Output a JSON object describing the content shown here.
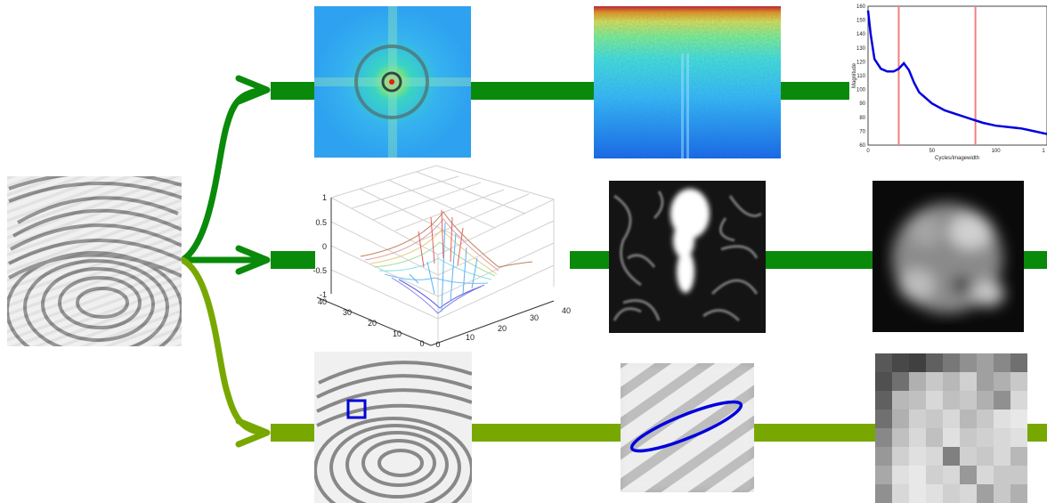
{
  "colors": {
    "green": "#0a8a0a",
    "olive": "#78a800",
    "blue_curve": "#0000e0",
    "red_marker": "#f08080",
    "ellipse": "#0000dd"
  },
  "spectrum_chart": {
    "ylabel": "Magnitude",
    "xlabel": "Cycles/imagewidth",
    "y_ticks": [
      "160",
      "150",
      "140",
      "130",
      "120",
      "110",
      "100",
      "90",
      "80",
      "70",
      "60"
    ],
    "x_ticks": [
      "0",
      "50",
      "100",
      "1"
    ]
  },
  "surface_plot": {
    "z_ticks": [
      "1",
      "0.5",
      "0",
      "-0.5",
      "-1"
    ],
    "x_ticks": [
      "0",
      "10",
      "20",
      "30",
      "40"
    ],
    "y_ticks": [
      "40",
      "30",
      "20",
      "10",
      "0"
    ]
  },
  "chart_data": [
    {
      "type": "line",
      "ylabel": "Magnitude",
      "xlabel": "Cycles/imagewidth",
      "xlim": [
        0,
        140
      ],
      "ylim": [
        60,
        160
      ],
      "x": [
        0,
        2,
        5,
        10,
        15,
        20,
        24,
        28,
        32,
        36,
        40,
        50,
        60,
        70,
        80,
        90,
        100,
        110,
        120,
        130,
        140
      ],
      "series": [
        {
          "values": [
            157,
            140,
            122,
            115,
            113,
            113,
            115,
            119,
            114,
            105,
            98,
            90,
            85,
            82,
            79,
            76,
            74,
            73,
            72,
            70,
            68
          ]
        }
      ],
      "markers_x": [
        24,
        84
      ]
    }
  ]
}
